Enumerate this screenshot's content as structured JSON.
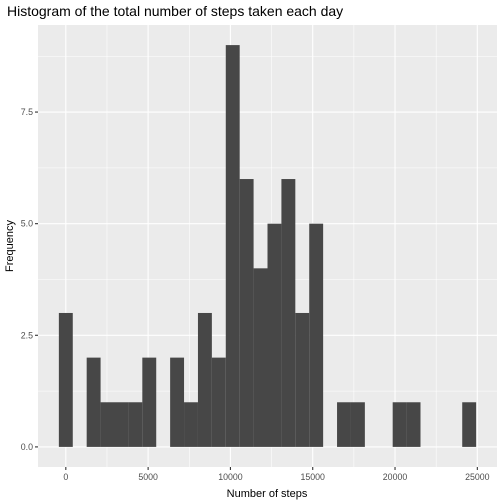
{
  "chart_data": {
    "type": "bar",
    "title": "Histogram of the total number of steps taken each day",
    "xlabel": "Number of steps",
    "ylabel": "Frequency",
    "bin_width": 845,
    "bins": [
      {
        "x": 0,
        "count": 3
      },
      {
        "x": 845,
        "count": 0
      },
      {
        "x": 1690,
        "count": 2
      },
      {
        "x": 2535,
        "count": 1
      },
      {
        "x": 3380,
        "count": 1
      },
      {
        "x": 4225,
        "count": 1
      },
      {
        "x": 5070,
        "count": 2
      },
      {
        "x": 5915,
        "count": 0
      },
      {
        "x": 6760,
        "count": 2
      },
      {
        "x": 7605,
        "count": 1
      },
      {
        "x": 8450,
        "count": 3
      },
      {
        "x": 9295,
        "count": 2
      },
      {
        "x": 10140,
        "count": 9
      },
      {
        "x": 10985,
        "count": 6
      },
      {
        "x": 11830,
        "count": 4
      },
      {
        "x": 12675,
        "count": 5
      },
      {
        "x": 13520,
        "count": 6
      },
      {
        "x": 14365,
        "count": 3
      },
      {
        "x": 15210,
        "count": 5
      },
      {
        "x": 16055,
        "count": 0
      },
      {
        "x": 16900,
        "count": 1
      },
      {
        "x": 17745,
        "count": 1
      },
      {
        "x": 18590,
        "count": 0
      },
      {
        "x": 19435,
        "count": 0
      },
      {
        "x": 20280,
        "count": 1
      },
      {
        "x": 21125,
        "count": 1
      },
      {
        "x": 21970,
        "count": 0
      },
      {
        "x": 22815,
        "count": 0
      },
      {
        "x": 23660,
        "count": 0
      },
      {
        "x": 24505,
        "count": 1
      }
    ],
    "x_ticks": [
      0,
      5000,
      10000,
      15000,
      20000,
      25000
    ],
    "x_tick_labels": [
      "0",
      "5000",
      "10000",
      "15000",
      "20000",
      "25000"
    ],
    "y_ticks": [
      0,
      2.5,
      5,
      7.5
    ],
    "y_tick_labels": [
      "0.0",
      "2.5",
      "5.0",
      "7.5"
    ],
    "xlim": [
      -1690,
      26195
    ],
    "ylim": [
      -0.45,
      9.45
    ],
    "grid": true,
    "colors": {
      "panel": "#ebebeb",
      "grid_major": "#ffffff",
      "bar": "#474747",
      "tick": "#333333"
    }
  }
}
